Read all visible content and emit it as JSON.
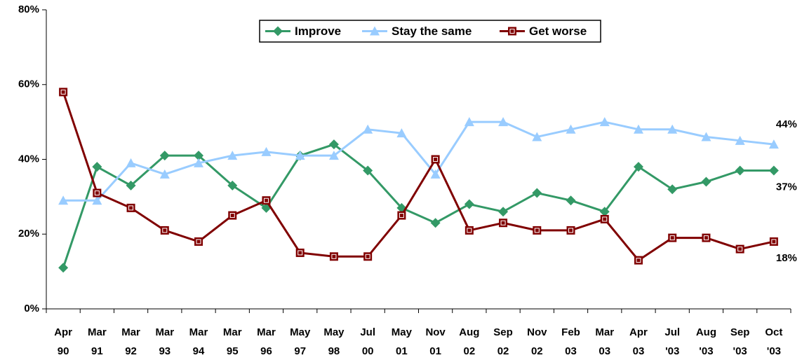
{
  "chart_data": {
    "type": "line",
    "categories": [
      [
        "Apr",
        "90"
      ],
      [
        "Mar",
        "91"
      ],
      [
        "Mar",
        "92"
      ],
      [
        "Mar",
        "93"
      ],
      [
        "Mar",
        "94"
      ],
      [
        "Mar",
        "95"
      ],
      [
        "Mar",
        "96"
      ],
      [
        "May",
        "97"
      ],
      [
        "May",
        "98"
      ],
      [
        "Jul",
        "00"
      ],
      [
        "May",
        "01"
      ],
      [
        "Nov",
        "01"
      ],
      [
        "Aug",
        "02"
      ],
      [
        "Sep",
        "02"
      ],
      [
        "Nov",
        "02"
      ],
      [
        "Feb",
        "03"
      ],
      [
        "Mar",
        "03"
      ],
      [
        "Apr",
        "03"
      ],
      [
        "Jul",
        "'03"
      ],
      [
        "Aug",
        "'03"
      ],
      [
        "Sep",
        "'03"
      ],
      [
        "Oct",
        "'03"
      ]
    ],
    "series": [
      {
        "name": "Improve",
        "color": "#339966",
        "marker": "diamond",
        "values": [
          11,
          38,
          33,
          41,
          41,
          33,
          27,
          41,
          44,
          37,
          27,
          23,
          28,
          26,
          31,
          29,
          26,
          38,
          32,
          34,
          37,
          37
        ],
        "value_labels": [
          null,
          null,
          null,
          null,
          null,
          null,
          null,
          null,
          null,
          null,
          null,
          null,
          null,
          null,
          null,
          null,
          null,
          null,
          null,
          null,
          null,
          "37%"
        ]
      },
      {
        "name": "Stay the same",
        "color": "#99ccff",
        "marker": "triangle",
        "values": [
          29,
          29,
          39,
          36,
          39,
          41,
          42,
          41,
          41,
          48,
          47,
          36,
          50,
          50,
          46,
          48,
          50,
          48,
          48,
          46,
          45,
          44
        ],
        "value_labels": [
          null,
          null,
          null,
          null,
          null,
          null,
          null,
          null,
          null,
          null,
          null,
          null,
          null,
          null,
          null,
          null,
          null,
          null,
          null,
          null,
          null,
          "44%"
        ]
      },
      {
        "name": "Get worse",
        "color": "#800000",
        "marker": "square",
        "values": [
          58,
          31,
          27,
          21,
          18,
          25,
          29,
          15,
          14,
          14,
          25,
          40,
          21,
          23,
          21,
          21,
          24,
          13,
          19,
          19,
          16,
          18
        ],
        "value_labels": [
          null,
          null,
          null,
          null,
          null,
          null,
          null,
          null,
          null,
          null,
          null,
          null,
          null,
          null,
          null,
          null,
          null,
          null,
          null,
          null,
          null,
          "18%"
        ]
      }
    ],
    "ylim": [
      0,
      80
    ],
    "yticks": [
      {
        "value": 0,
        "label": "0%"
      },
      {
        "value": 20,
        "label": "20%"
      },
      {
        "value": 40,
        "label": "40%"
      },
      {
        "value": 60,
        "label": "60%"
      },
      {
        "value": 80,
        "label": "80%"
      }
    ],
    "grid": false,
    "legend": "top"
  }
}
